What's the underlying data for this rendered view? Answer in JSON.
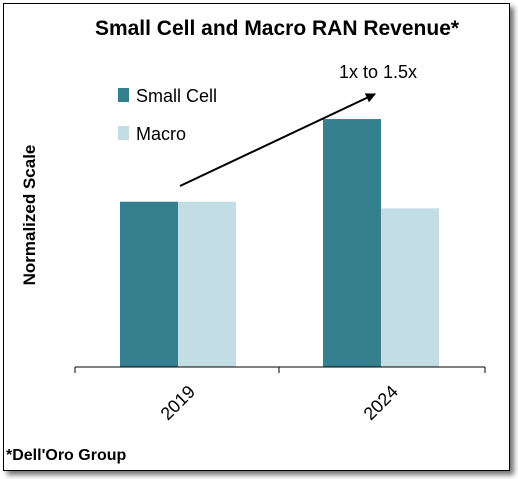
{
  "chart_data": {
    "type": "bar",
    "title": "Small Cell and Macro RAN Revenue*",
    "xlabel": "",
    "ylabel": "Normalized Scale",
    "categories": [
      "2019",
      "2024"
    ],
    "series": [
      {
        "name": "Small Cell",
        "color": "#367f8e",
        "values": [
          1.0,
          1.5
        ]
      },
      {
        "name": "Macro",
        "color": "#c3dde5",
        "values": [
          1.0,
          0.96
        ]
      }
    ],
    "ylim": [
      0,
      1.7
    ],
    "grid": false,
    "legend_position": "top-left",
    "annotation": {
      "text": "1x to 1.5x"
    },
    "source": "*Dell'Oro Group"
  }
}
